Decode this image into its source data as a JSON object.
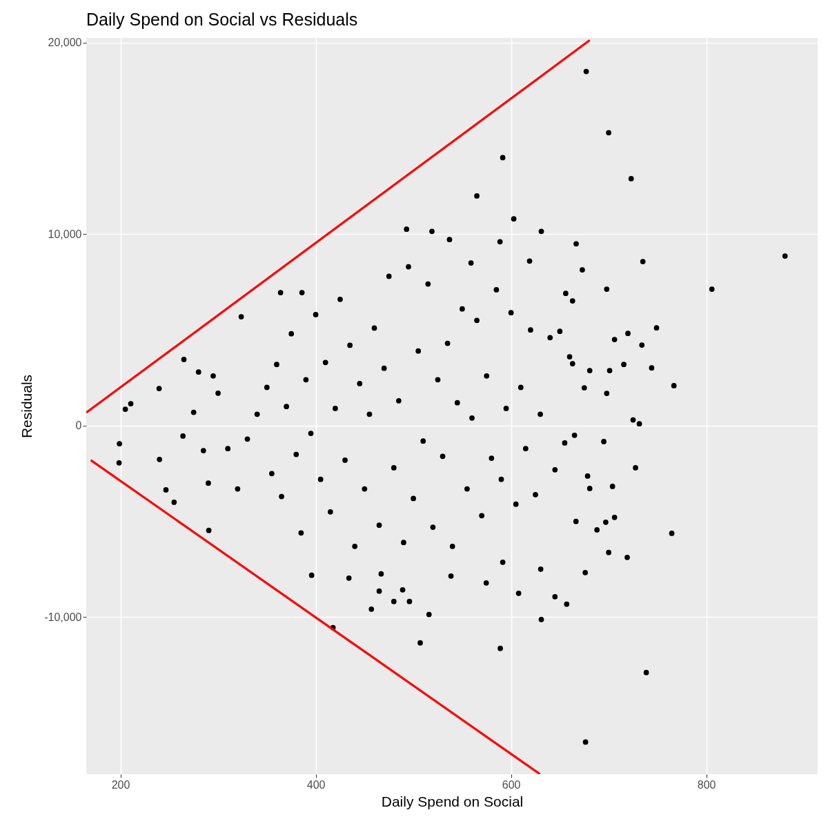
{
  "chart_data": {
    "type": "scatter",
    "title": "Daily Spend on Social vs Residuals",
    "xlabel": "Daily Spend on Social",
    "ylabel": "Residuals",
    "xlim": [
      165,
      914
    ],
    "ylim": [
      -18200,
      20250
    ],
    "xticks": [
      200,
      400,
      600,
      800
    ],
    "yticks": [
      {
        "value": -10000,
        "label": "-10,000"
      },
      {
        "value": 0,
        "label": "0"
      },
      {
        "value": 10000,
        "label": "10,000"
      },
      {
        "value": 20000,
        "label": "20,000"
      }
    ],
    "grid": true,
    "series": [
      {
        "marker": "circle",
        "color": "#000000",
        "x": [
          677,
          700,
          723,
          591.5,
          565,
          880.6,
          805.7,
          766.8,
          764.6,
          738.5,
          676.3,
          589,
          507,
          417.7,
          631,
          516,
          457,
          198.6,
          199,
          205,
          210.6,
          239.6,
          240,
          246.6,
          255,
          265,
          264,
          290.5,
          323.7,
          395.8,
          364,
          385.9,
          493,
          519,
          537,
          588.7,
          602.8,
          631,
          666.7,
          673,
          619,
          559,
          735,
          698,
          749,
          744,
          734,
          731.4,
          725,
          727.5,
          719,
          700,
          706,
          697,
          688,
          666.5,
          676,
          657,
          645,
          630.4,
          607.8,
          591.5,
          574.6,
          538.5,
          467,
          489,
          465,
          496,
          480,
          434,
          680.6,
          675,
          698,
          701,
          706,
          719.7,
          715.5,
          663,
          650,
          656,
          663,
          695,
          678.4,
          680.6,
          703.9,
          300,
          310,
          320,
          330,
          340,
          350,
          355,
          360,
          365,
          370,
          375,
          380,
          385,
          390,
          395,
          400,
          405,
          410,
          415,
          420,
          425,
          430,
          435,
          440,
          445,
          450,
          455,
          460,
          465,
          470,
          475,
          480,
          485,
          490,
          495,
          500,
          505,
          510,
          515,
          520,
          525,
          530,
          535,
          540,
          545,
          550,
          555,
          560,
          565,
          570,
          575,
          580,
          585,
          590,
          595,
          600,
          605,
          610,
          615,
          620,
          625,
          630,
          640,
          645,
          655,
          660,
          665,
          280,
          285,
          275,
          290,
          295
        ],
        "values": [
          18500,
          15300,
          12900,
          14000,
          12000,
          8860,
          7130,
          2090,
          -5620,
          -12890,
          -16520,
          -11630,
          -11340,
          -10550,
          -10120,
          -9860,
          -9580,
          -1940,
          -940,
          860,
          1150,
          1940,
          -1760,
          -3350,
          -4000,
          3460,
          -540,
          -5470,
          5690,
          -7810,
          6950,
          6950,
          10260,
          10150,
          9720,
          9610,
          10800,
          10150,
          9500,
          8140,
          8600,
          8500,
          8570,
          7130,
          5110,
          3020,
          4210,
          100,
          300,
          -2200,
          -6880,
          -6620,
          -4790,
          -5040,
          -5440,
          -5000,
          -7670,
          -9320,
          -8930,
          -7490,
          -8750,
          -7130,
          -8210,
          -7850,
          -7740,
          -8570,
          -8640,
          -9180,
          -9180,
          -7960,
          2880,
          1980,
          1690,
          2880,
          4500,
          4820,
          3200,
          3240,
          4930,
          6910,
          6520,
          -830,
          -2630,
          -3280,
          -3170,
          1700,
          -1200,
          -3300,
          -700,
          600,
          2000,
          -2500,
          3200,
          -3700,
          1000,
          4800,
          -1500,
          -5600,
          2400,
          -400,
          5800,
          -2800,
          3300,
          -4500,
          900,
          6600,
          -1800,
          4200,
          -6300,
          2200,
          -3300,
          600,
          5100,
          -5200,
          3000,
          7800,
          -2200,
          1300,
          -6100,
          8300,
          -3800,
          3900,
          -800,
          7400,
          -5300,
          2400,
          -1600,
          4300,
          -6300,
          1200,
          6100,
          -3300,
          400,
          5500,
          -4700,
          2600,
          -1700,
          7100,
          -2800,
          900,
          5900,
          -4100,
          2000,
          -1200,
          5000,
          -3600,
          600,
          4600,
          -2300,
          -900,
          3600,
          -500,
          2800,
          -1300,
          700,
          -3000,
          2600
        ]
      },
      {
        "type": "line",
        "color": "#ff0000",
        "x": [
          165,
          680.6
        ],
        "values": [
          680,
          20130
        ]
      },
      {
        "type": "line",
        "color": "#ff0000",
        "x": [
          169.6,
          629.7
        ],
        "values": [
          -1800,
          -18200
        ]
      }
    ]
  }
}
